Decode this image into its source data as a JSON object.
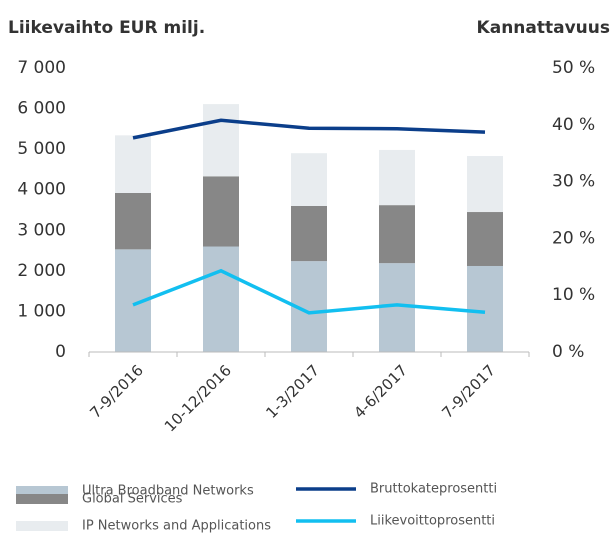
{
  "chart_data": {
    "type": "bar",
    "title": "Liikevaihto EUR milj.",
    "y2_title": "Kannattavuus",
    "categories": [
      "7-9/2016",
      "10-12/2016",
      "1-3/2017",
      "4-6/2017",
      "7-9/2017"
    ],
    "series": [
      {
        "name": "Ultra Broadband Networks",
        "color": "#b7c7d3",
        "values": [
          2530,
          2600,
          2240,
          2190,
          2120
        ]
      },
      {
        "name": "Global Services",
        "color": "#878787",
        "values": [
          1390,
          1730,
          1360,
          1430,
          1330
        ]
      },
      {
        "name": "IP Networks and Applications",
        "color": "#e8ecef",
        "values": [
          1420,
          1780,
          1300,
          1360,
          1380
        ]
      },
      {
        "name": "Bruttokateprosentti",
        "color": "#0b3e8a",
        "type": "line",
        "axis": "y2",
        "values": [
          37.7,
          40.8,
          39.4,
          39.3,
          38.7
        ]
      },
      {
        "name": "Liikevoittoprosentti",
        "color": "#12bff0",
        "type": "line",
        "axis": "y2",
        "values": [
          8.3,
          14.3,
          6.9,
          8.3,
          7.0
        ]
      }
    ],
    "ylim": [
      0,
      7000
    ],
    "yticks": [
      0,
      {
        "value": 1000,
        "label": "1 000"
      },
      {
        "value": 2000,
        "label": "2 000"
      },
      {
        "value": 3000,
        "label": "3 000"
      },
      {
        "value": 4000,
        "label": "4 000"
      },
      {
        "value": 5000,
        "label": "5 000"
      },
      {
        "value": 6000,
        "label": "6 000"
      },
      {
        "value": 7000,
        "label": "7 000"
      }
    ],
    "y2lim": [
      0,
      50
    ],
    "y2ticks": [
      {
        "value": 0,
        "label": "0 %"
      },
      {
        "value": 10,
        "label": "10 %"
      },
      {
        "value": 20,
        "label": "20 %"
      },
      {
        "value": 30,
        "label": "30 %"
      },
      {
        "value": 40,
        "label": "40 %"
      },
      {
        "value": 50,
        "label": "50 %"
      }
    ]
  }
}
